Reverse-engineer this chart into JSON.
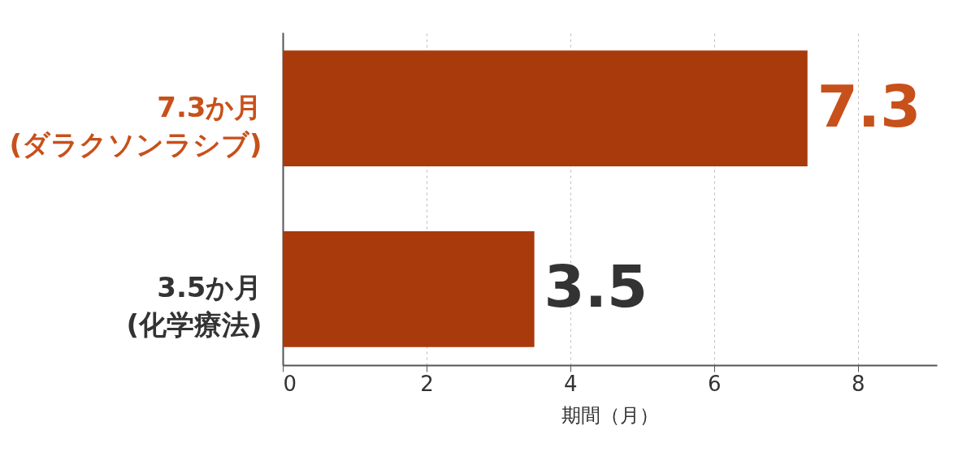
{
  "chart_data": {
    "type": "bar",
    "orientation": "horizontal",
    "xlabel": "期間（月）",
    "categories": [
      "7.3か月\n(ダラクソンラシブ)",
      "3.5か月\n(化学療法)"
    ],
    "values": [
      7.3,
      3.5
    ],
    "colors": [
      "#a83a0c",
      "#a83a0c"
    ],
    "xlim": [
      0,
      9.1
    ],
    "xticks": [
      0,
      2,
      4,
      6,
      8
    ],
    "grid": "x",
    "data_labels": true
  }
}
